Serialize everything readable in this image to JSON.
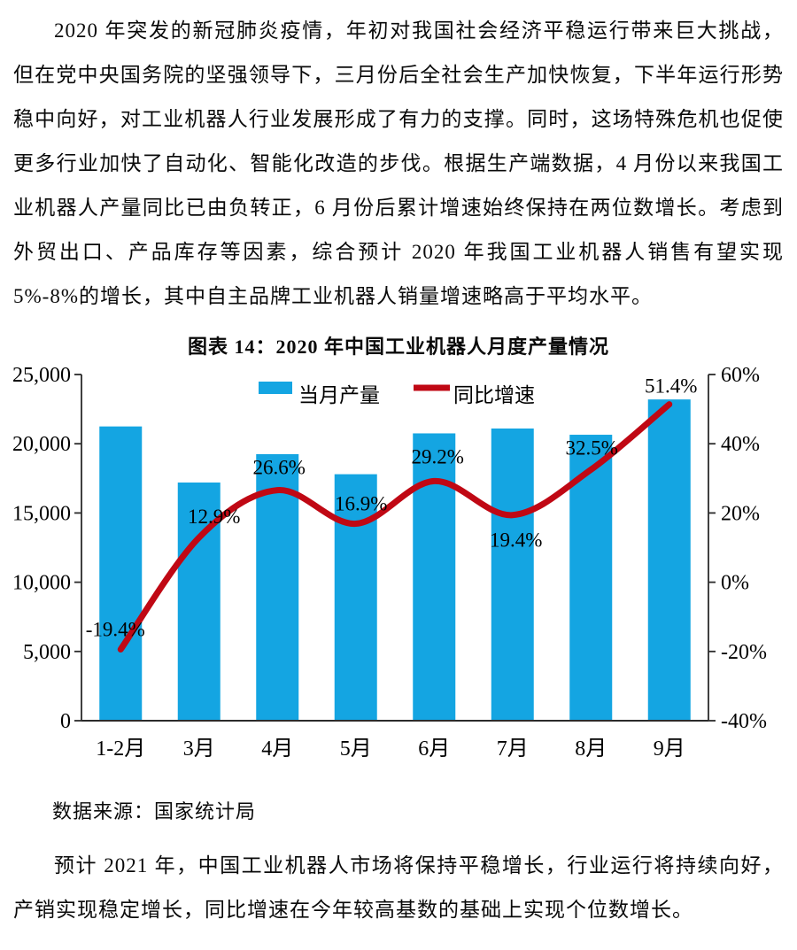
{
  "page": {
    "paragraph1": "2020 年突发的新冠肺炎疫情，年初对我国社会经济平稳运行带来巨大挑战，但在党中央国务院的坚强领导下，三月份后全社会生产加快恢复，下半年运行形势稳中向好，对工业机器人行业发展形成了有力的支撑。同时，这场特殊危机也促使更多行业加快了自动化、智能化改造的步伐。根据生产端数据，4 月份以来我国工业机器人产量同比已由负转正，6 月份后累计增速始终保持在两位数增长。考虑到外贸出口、产品库存等因素，综合预计 2020 年我国工业机器人销售有望实现5%-8%的增长，其中自主品牌工业机器人销量增速略高于平均水平。",
    "chart_title": "图表 14：2020 年中国工业机器人月度产量情况",
    "data_source": "数据来源：国家统计局",
    "paragraph2": "预计 2021 年，中国工业机器人市场将保持平稳增长，行业运行将持续向好，产销实现稳定增长，同比增速在今年较高基数的基础上实现个位数增长。"
  },
  "chart_data": {
    "type": "bar",
    "subtype": "bar-line-combo",
    "title": "图表 14：2020 年中国工业机器人月度产量情况",
    "categories": [
      "1-2月",
      "3月",
      "4月",
      "5月",
      "6月",
      "7月",
      "8月",
      "9月"
    ],
    "series": [
      {
        "name": "当月产量",
        "type": "bar",
        "axis": "left",
        "color": "#14A5E2",
        "values": [
          21250,
          17200,
          19250,
          17800,
          20750,
          21100,
          20650,
          23200
        ]
      },
      {
        "name": "同比增速",
        "type": "line",
        "axis": "right",
        "color": "#C00814",
        "values": [
          -19.4,
          12.9,
          26.6,
          16.9,
          29.2,
          19.4,
          32.5,
          51.4
        ]
      }
    ],
    "data_labels": [
      "-19.4%",
      "12.9%",
      "26.6%",
      "16.9%",
      "29.2%",
      "19.4%",
      "32.5%",
      "51.4%"
    ],
    "left_axis": {
      "min": 0,
      "max": 25000,
      "ticks": [
        "25,000",
        "20,000",
        "15,000",
        "10,000",
        "5,000",
        "0"
      ]
    },
    "right_axis": {
      "min": -40,
      "max": 60,
      "ticks": [
        "60%",
        "40%",
        "20%",
        "0%",
        "-20%",
        "-40%"
      ]
    },
    "legend_position": "top-center",
    "grid": false,
    "axis_color": "#2b2b2b"
  }
}
